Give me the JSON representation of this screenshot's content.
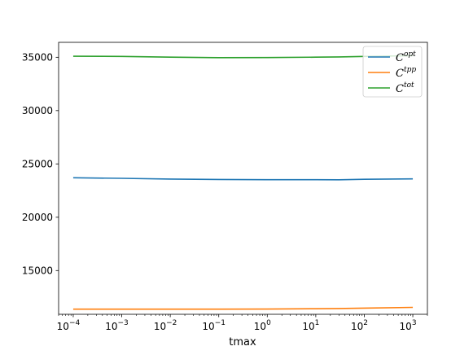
{
  "chart_data": {
    "type": "line",
    "title": "",
    "xlabel": "tmax",
    "ylabel": "",
    "xscale": "log",
    "xlim": [
      5e-05,
      2000
    ],
    "ylim": [
      10900,
      36400
    ],
    "grid": false,
    "legend_placement": "top-right",
    "x_ticks": [
      {
        "value": 0.0001,
        "base": "10",
        "exp": "−4"
      },
      {
        "value": 0.001,
        "base": "10",
        "exp": "−3"
      },
      {
        "value": 0.01,
        "base": "10",
        "exp": "−2"
      },
      {
        "value": 0.1,
        "base": "10",
        "exp": "−1"
      },
      {
        "value": 1,
        "base": "10",
        "exp": "0"
      },
      {
        "value": 10,
        "base": "10",
        "exp": "1"
      },
      {
        "value": 100,
        "base": "10",
        "exp": "2"
      },
      {
        "value": 1000,
        "base": "10",
        "exp": "3"
      }
    ],
    "y_ticks": [
      15000,
      20000,
      25000,
      30000,
      35000
    ],
    "x": [
      0.0001,
      0.001,
      0.01,
      0.1,
      1,
      10,
      30,
      100,
      1000
    ],
    "series": [
      {
        "name": "C",
        "sup": "opt",
        "color": "#1f77b4",
        "values": [
          23700,
          23650,
          23580,
          23540,
          23520,
          23520,
          23510,
          23560,
          23600
        ]
      },
      {
        "name": "C",
        "sup": "tpp",
        "color": "#ff7f0e",
        "values": [
          11380,
          11380,
          11380,
          11380,
          11390,
          11420,
          11440,
          11480,
          11550
        ]
      },
      {
        "name": "C",
        "sup": "tot",
        "color": "#2ca02c",
        "values": [
          35100,
          35080,
          35010,
          34960,
          34970,
          35010,
          35030,
          35080,
          35150
        ]
      }
    ]
  }
}
